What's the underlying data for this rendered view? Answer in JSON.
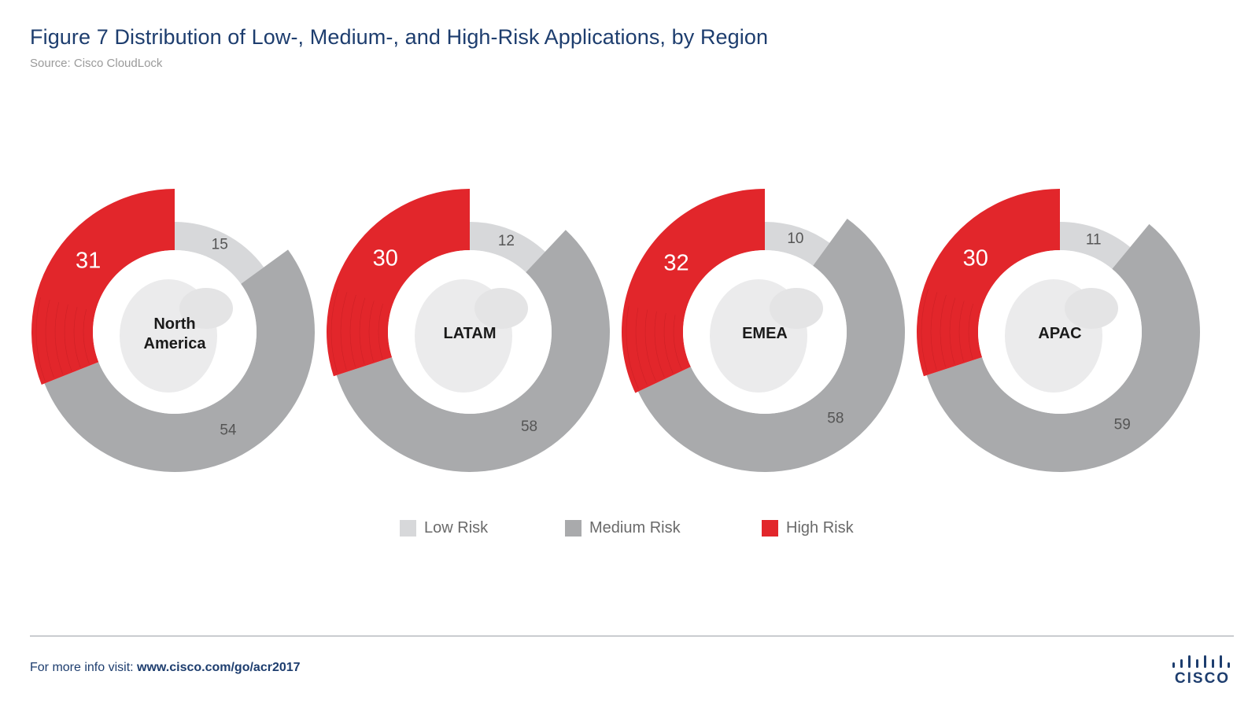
{
  "page": {
    "title": "Figure 7  Distribution of Low-, Medium-, and High-Risk Applications, by Region",
    "source": "Source: Cisco CloudLock",
    "footer_prefix": "For more info visit: ",
    "footer_link": "www.cisco.com/go/acr2017",
    "logo_text": "CISCO"
  },
  "colors": {
    "low": "#d7d8da",
    "medium": "#a9aaac",
    "high": "#e2262b",
    "title": "#1d3d6e"
  },
  "legend": [
    {
      "key": "low",
      "label": "Low Risk"
    },
    {
      "key": "medium",
      "label": "Medium Risk"
    },
    {
      "key": "high",
      "label": "High Risk"
    }
  ],
  "chart_data": [
    {
      "type": "pie",
      "region": "North America",
      "region_lines": [
        "North",
        "America"
      ],
      "series": [
        {
          "name": "Low Risk",
          "value": 15
        },
        {
          "name": "Medium Risk",
          "value": 54
        },
        {
          "name": "High Risk",
          "value": 31
        }
      ]
    },
    {
      "type": "pie",
      "region": "LATAM",
      "region_lines": [
        "LATAM"
      ],
      "series": [
        {
          "name": "Low Risk",
          "value": 12
        },
        {
          "name": "Medium Risk",
          "value": 58
        },
        {
          "name": "High Risk",
          "value": 30
        }
      ]
    },
    {
      "type": "pie",
      "region": "EMEA",
      "region_lines": [
        "EMEA"
      ],
      "series": [
        {
          "name": "Low Risk",
          "value": 10
        },
        {
          "name": "Medium Risk",
          "value": 58
        },
        {
          "name": "High Risk",
          "value": 32
        }
      ]
    },
    {
      "type": "pie",
      "region": "APAC",
      "region_lines": [
        "APAC"
      ],
      "series": [
        {
          "name": "Low Risk",
          "value": 11
        },
        {
          "name": "Medium Risk",
          "value": 59
        },
        {
          "name": "High Risk",
          "value": 30
        }
      ]
    }
  ]
}
